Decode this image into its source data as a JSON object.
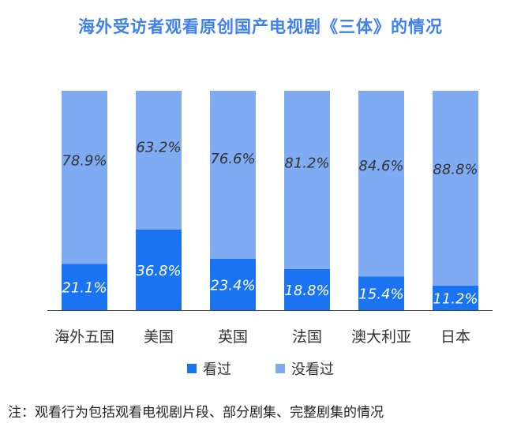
{
  "title": "海外受访者观看原创国产电视剧《三体》的情况",
  "footnote": "注：观看行为包括观看电视剧片段、部分剧集、完整剧集的情况",
  "colors": {
    "watched": "#1a73f0",
    "not_watched": "#7fabf2",
    "title": "#3f80ef",
    "axis": "#444444"
  },
  "chart_data": {
    "type": "bar",
    "stacked": true,
    "categories": [
      "海外五国",
      "美国",
      "英国",
      "法国",
      "澳大利亚",
      "日本"
    ],
    "series": [
      {
        "name": "看过",
        "values": [
          21.1,
          36.8,
          23.4,
          18.8,
          15.4,
          11.2
        ],
        "labels": [
          "21.1%",
          "36.8%",
          "23.4%",
          "18.8%",
          "15.4%",
          "11.2%"
        ]
      },
      {
        "name": "没看过",
        "values": [
          78.9,
          63.2,
          76.6,
          81.2,
          84.6,
          88.8
        ],
        "labels": [
          "78.9%",
          "63.2%",
          "76.6%",
          "81.2%",
          "84.6%",
          "88.8%"
        ]
      }
    ],
    "ylim": [
      0,
      100
    ],
    "grid": false,
    "legend": "bottom"
  }
}
